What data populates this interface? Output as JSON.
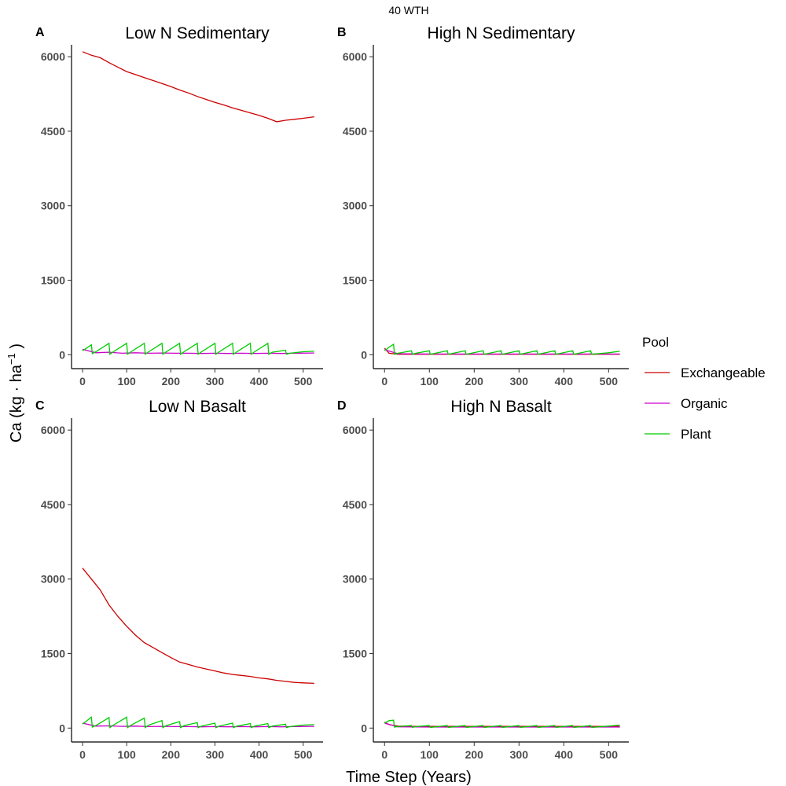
{
  "figure": {
    "title": "40 WTH",
    "xlabel": "Time Step (Years)",
    "ylabel_main": "Ca (kg · ha",
    "ylabel_sup": "−1",
    "ylabel_close": " )"
  },
  "legend": {
    "title": "Pool",
    "entries": [
      {
        "name": "Exchangeable",
        "color": "#cc0000"
      },
      {
        "name": "Organic",
        "color": "#cc00cc"
      },
      {
        "name": "Plant",
        "color": "#00cc00"
      }
    ]
  },
  "chart_data": [
    {
      "type": "line",
      "panel": "A",
      "title": "Low N Sedimentary",
      "xlim": [
        -25,
        545
      ],
      "ylim": [
        -280,
        6240
      ],
      "xticks": [
        0,
        100,
        200,
        300,
        400,
        500
      ],
      "yticks": [
        0,
        1500,
        3000,
        4500,
        6000
      ],
      "series": [
        {
          "name": "Exchangeable",
          "color": "#cc0000",
          "x": [
            0,
            20,
            40,
            60,
            80,
            100,
            120,
            140,
            160,
            180,
            200,
            220,
            240,
            260,
            280,
            300,
            320,
            340,
            360,
            380,
            400,
            420,
            440,
            460,
            480,
            500,
            525
          ],
          "y": [
            6100,
            6030,
            5980,
            5880,
            5790,
            5700,
            5640,
            5580,
            5520,
            5460,
            5400,
            5330,
            5270,
            5200,
            5140,
            5080,
            5030,
            4970,
            4920,
            4870,
            4820,
            4760,
            4690,
            4720,
            4740,
            4760,
            4790
          ]
        },
        {
          "name": "Organic",
          "color": "#cc00cc",
          "x": [
            0,
            30,
            60,
            90,
            120,
            150,
            180,
            210,
            240,
            270,
            300,
            330,
            360,
            390,
            420,
            450,
            480,
            525
          ],
          "y": [
            110,
            40,
            50,
            30,
            40,
            30,
            35,
            30,
            30,
            25,
            30,
            25,
            30,
            25,
            30,
            25,
            30,
            35
          ]
        },
        {
          "name": "Plant",
          "color": "#00cc00",
          "x": [
            0,
            20,
            22,
            30,
            60,
            62,
            70,
            100,
            102,
            110,
            140,
            142,
            150,
            180,
            182,
            190,
            220,
            222,
            230,
            260,
            262,
            270,
            300,
            302,
            310,
            340,
            342,
            350,
            380,
            382,
            390,
            420,
            422,
            430,
            460,
            462,
            470,
            500,
            525
          ],
          "y": [
            80,
            200,
            20,
            60,
            230,
            10,
            60,
            230,
            10,
            60,
            230,
            10,
            60,
            230,
            10,
            60,
            230,
            10,
            60,
            230,
            10,
            60,
            230,
            10,
            60,
            230,
            10,
            60,
            230,
            10,
            60,
            230,
            10,
            50,
            90,
            10,
            30,
            60,
            70
          ]
        }
      ]
    },
    {
      "type": "line",
      "panel": "B",
      "title": "High N Sedimentary",
      "xlim": [
        -25,
        545
      ],
      "ylim": [
        -280,
        6240
      ],
      "xticks": [
        0,
        100,
        200,
        300,
        400,
        500
      ],
      "yticks": [
        0,
        1500,
        3000,
        4500,
        6000
      ],
      "series": [
        {
          "name": "Exchangeable",
          "color": "#cc0000",
          "x": [
            0,
            10,
            30,
            60,
            100,
            150,
            200,
            250,
            300,
            350,
            400,
            450,
            500,
            525
          ],
          "y": [
            130,
            30,
            10,
            10,
            10,
            10,
            10,
            10,
            10,
            10,
            10,
            10,
            10,
            10
          ]
        },
        {
          "name": "Organic",
          "color": "#cc00cc",
          "x": [
            0,
            30,
            100,
            200,
            300,
            400,
            500,
            525
          ],
          "y": [
            100,
            20,
            15,
            15,
            15,
            15,
            15,
            15
          ]
        },
        {
          "name": "Plant",
          "color": "#00cc00",
          "x": [
            0,
            10,
            20,
            22,
            30,
            60,
            62,
            70,
            100,
            102,
            140,
            142,
            180,
            182,
            220,
            222,
            260,
            262,
            300,
            302,
            340,
            342,
            380,
            382,
            420,
            422,
            460,
            462,
            500,
            525
          ],
          "y": [
            80,
            150,
            210,
            10,
            30,
            80,
            10,
            30,
            80,
            10,
            80,
            10,
            80,
            10,
            80,
            10,
            80,
            10,
            80,
            10,
            80,
            10,
            80,
            10,
            80,
            10,
            80,
            10,
            40,
            70
          ]
        }
      ]
    },
    {
      "type": "line",
      "panel": "C",
      "title": "Low N Basalt",
      "xlim": [
        -25,
        545
      ],
      "ylim": [
        -280,
        6240
      ],
      "xticks": [
        0,
        100,
        200,
        300,
        400,
        500
      ],
      "yticks": [
        0,
        1500,
        3000,
        4500,
        6000
      ],
      "series": [
        {
          "name": "Exchangeable",
          "color": "#cc0000",
          "x": [
            0,
            20,
            40,
            60,
            80,
            100,
            120,
            140,
            160,
            180,
            200,
            220,
            240,
            260,
            280,
            300,
            320,
            340,
            360,
            380,
            400,
            420,
            440,
            460,
            480,
            500,
            525
          ],
          "y": [
            3220,
            3000,
            2780,
            2480,
            2250,
            2050,
            1870,
            1720,
            1620,
            1520,
            1420,
            1330,
            1280,
            1230,
            1190,
            1150,
            1110,
            1080,
            1060,
            1040,
            1010,
            990,
            960,
            940,
            920,
            910,
            900
          ]
        },
        {
          "name": "Organic",
          "color": "#cc00cc",
          "x": [
            0,
            30,
            60,
            90,
            120,
            150,
            180,
            210,
            240,
            270,
            300,
            330,
            360,
            390,
            420,
            450,
            480,
            525
          ],
          "y": [
            100,
            40,
            45,
            35,
            40,
            30,
            35,
            30,
            30,
            25,
            30,
            25,
            30,
            25,
            30,
            25,
            30,
            35
          ]
        },
        {
          "name": "Plant",
          "color": "#00cc00",
          "x": [
            0,
            20,
            22,
            30,
            60,
            62,
            70,
            100,
            102,
            110,
            140,
            142,
            150,
            180,
            182,
            190,
            220,
            222,
            230,
            260,
            262,
            270,
            300,
            302,
            310,
            340,
            342,
            350,
            380,
            382,
            390,
            420,
            422,
            430,
            460,
            462,
            470,
            500,
            525
          ],
          "y": [
            80,
            220,
            20,
            50,
            210,
            10,
            60,
            220,
            10,
            60,
            200,
            10,
            60,
            150,
            10,
            50,
            130,
            10,
            50,
            110,
            10,
            40,
            100,
            10,
            40,
            100,
            10,
            40,
            90,
            10,
            40,
            90,
            10,
            40,
            80,
            10,
            30,
            60,
            70
          ]
        }
      ]
    },
    {
      "type": "line",
      "panel": "D",
      "title": "High N Basalt",
      "xlim": [
        -25,
        545
      ],
      "ylim": [
        -280,
        6240
      ],
      "xticks": [
        0,
        100,
        200,
        300,
        400,
        500
      ],
      "yticks": [
        0,
        1500,
        3000,
        4500,
        6000
      ],
      "series": [
        {
          "name": "Exchangeable",
          "color": "#cc0000",
          "x": [
            0,
            10,
            30,
            60,
            100,
            150,
            200,
            250,
            300,
            350,
            400,
            450,
            500,
            525
          ],
          "y": [
            120,
            70,
            40,
            35,
            35,
            35,
            35,
            35,
            35,
            35,
            35,
            35,
            35,
            35
          ]
        },
        {
          "name": "Organic",
          "color": "#cc00cc",
          "x": [
            0,
            30,
            100,
            200,
            300,
            400,
            500,
            525
          ],
          "y": [
            100,
            25,
            20,
            20,
            20,
            20,
            20,
            20
          ]
        },
        {
          "name": "Plant",
          "color": "#00cc00",
          "x": [
            0,
            10,
            20,
            22,
            30,
            60,
            62,
            70,
            100,
            102,
            140,
            142,
            180,
            182,
            220,
            222,
            260,
            262,
            300,
            302,
            340,
            342,
            380,
            382,
            420,
            422,
            460,
            462,
            500,
            525
          ],
          "y": [
            100,
            150,
            160,
            20,
            30,
            50,
            15,
            30,
            50,
            15,
            50,
            15,
            50,
            15,
            50,
            15,
            50,
            15,
            50,
            15,
            50,
            15,
            50,
            15,
            50,
            15,
            50,
            15,
            40,
            60
          ]
        }
      ]
    }
  ]
}
